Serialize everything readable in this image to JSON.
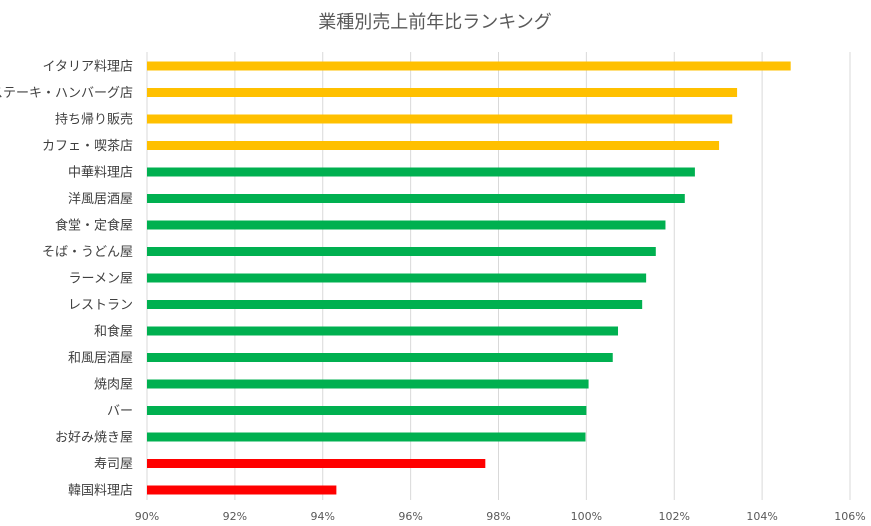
{
  "chart_data": {
    "type": "bar",
    "orientation": "horizontal",
    "title": "業種別売上前年比ランキング",
    "xlabel": "",
    "ylabel": "",
    "xlim": [
      0.9,
      1.06
    ],
    "x_ticks": [
      0.9,
      0.92,
      0.94,
      0.96,
      0.98,
      1.0,
      1.02,
      1.04,
      1.06
    ],
    "x_tick_labels": [
      "90%",
      "92%",
      "94%",
      "96%",
      "98%",
      "100%",
      "102%",
      "104%",
      "106%"
    ],
    "grid": "vertical",
    "legend": "none",
    "categories": [
      "イタリア料理店",
      "ステーキ・ハンバーグ店",
      "持ち帰り販売",
      "カフェ・喫茶店",
      "中華料理店",
      "洋風居酒屋",
      "食堂・定食屋",
      "そば・うどん屋",
      "ラーメン屋",
      "レストラン",
      "和食屋",
      "和風居酒屋",
      "焼肉屋",
      "バー",
      "お好み焼き屋",
      "寿司屋",
      "韓国料理店"
    ],
    "values": [
      1.0465,
      1.0343,
      1.0332,
      1.0302,
      1.0247,
      1.0224,
      1.018,
      1.0158,
      1.0136,
      1.0127,
      1.0072,
      1.006,
      1.0005,
      1.0,
      0.9998,
      0.977,
      0.9431
    ],
    "bar_colors": [
      "#ffc000",
      "#ffc000",
      "#ffc000",
      "#ffc000",
      "#00b050",
      "#00b050",
      "#00b050",
      "#00b050",
      "#00b050",
      "#00b050",
      "#00b050",
      "#00b050",
      "#00b050",
      "#00b050",
      "#00b050",
      "#ff0000",
      "#ff0000"
    ]
  }
}
